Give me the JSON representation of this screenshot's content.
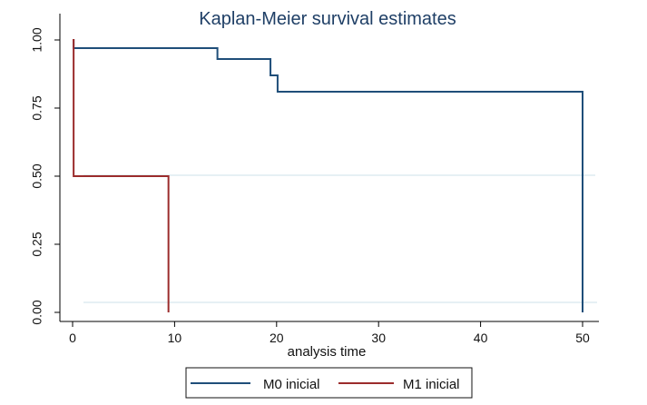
{
  "chart_data": {
    "type": "line",
    "subtype": "step",
    "title": "Kaplan-Meier survival estimates",
    "xlabel": "analysis time",
    "ylabel": "",
    "xlim": [
      0,
      50
    ],
    "ylim": [
      0,
      1
    ],
    "x_ticks": [
      0,
      10,
      20,
      30,
      40,
      50
    ],
    "x_tick_labels": [
      "0",
      "10",
      "20",
      "30",
      "40",
      "50"
    ],
    "y_ticks": [
      0,
      0.25,
      0.5,
      0.75,
      1
    ],
    "y_tick_labels": [
      "0.00",
      "0.25",
      "0.50",
      "0.75",
      "1.00"
    ],
    "grid": true,
    "legend_position": "bottom",
    "series": [
      {
        "name": "M0 inicial",
        "color": "#1f4e79",
        "steps": [
          {
            "x": 0,
            "y": 1
          },
          {
            "x": 0.1,
            "y": 0.97
          },
          {
            "x": 14.2,
            "y": 0.93
          },
          {
            "x": 19.4,
            "y": 0.87
          },
          {
            "x": 20.1,
            "y": 0.81
          },
          {
            "x": 50,
            "y": 0
          }
        ]
      },
      {
        "name": "M1 inicial",
        "color": "#9b2c2c",
        "steps": [
          {
            "x": 0,
            "y": 1
          },
          {
            "x": 0.1,
            "y": 0.5
          },
          {
            "x": 9.4,
            "y": 0
          }
        ]
      }
    ]
  }
}
